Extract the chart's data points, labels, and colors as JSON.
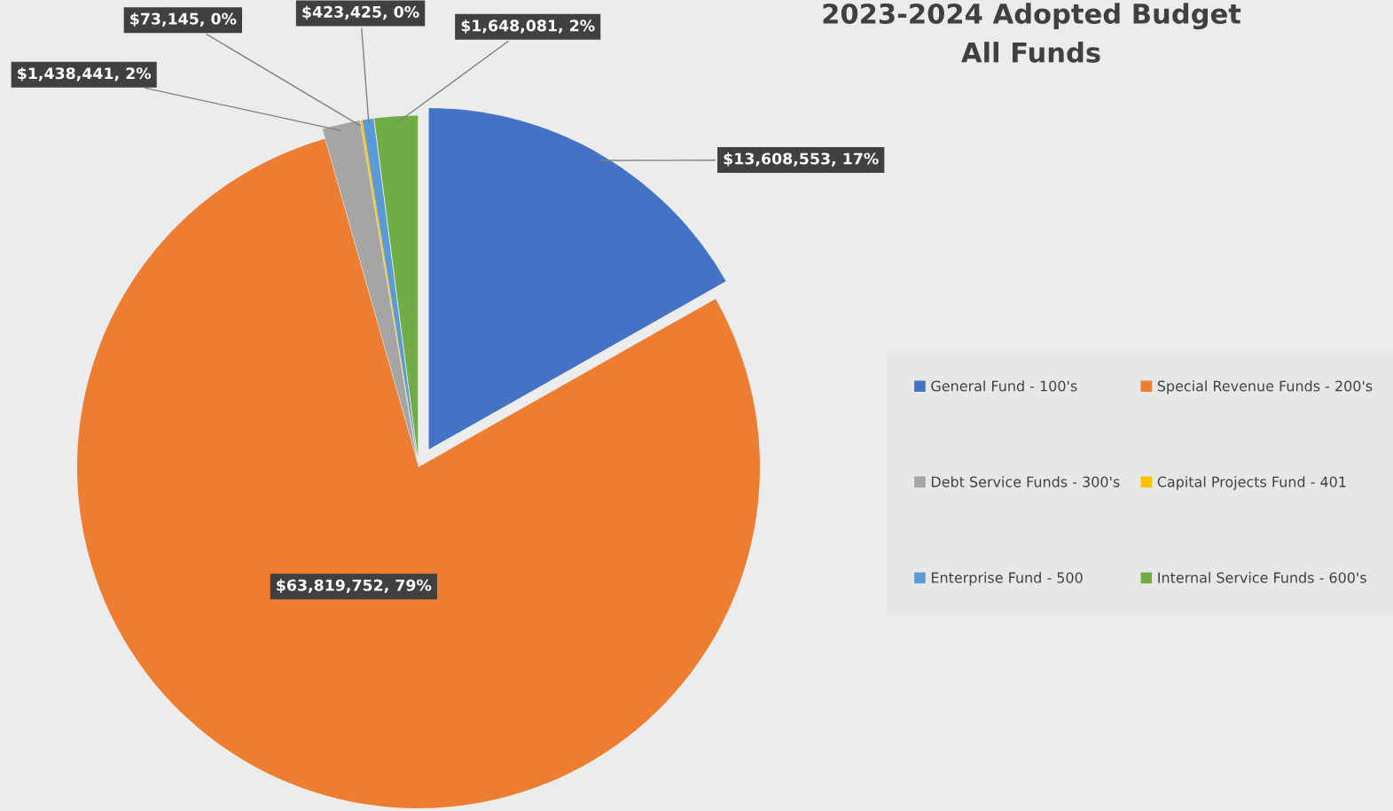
{
  "chart_data": {
    "type": "pie",
    "title": "2023-2024 Adopted Budget\nAll Funds",
    "categories": [
      "General Fund - 100's",
      "Special Revenue Funds - 200's",
      "Debt Service Funds - 300's",
      "Capital Projects Fund - 401",
      "Enterprise Fund - 500",
      "Internal Service Funds - 600's"
    ],
    "values": [
      13608553,
      63819752,
      1438441,
      73145,
      423425,
      1648081
    ],
    "colors": [
      "#4472c4",
      "#ed7d31",
      "#a5a5a5",
      "#ffc000",
      "#5b9bd5",
      "#70ad47"
    ],
    "value_labels": [
      "$13,608,553, 17%",
      "$63,819,752, 79%",
      "$1,438,441, 2%",
      "$73,145, 0%",
      "$423,425, 0%",
      "$1,648,081, 2%"
    ],
    "legend": "right"
  }
}
